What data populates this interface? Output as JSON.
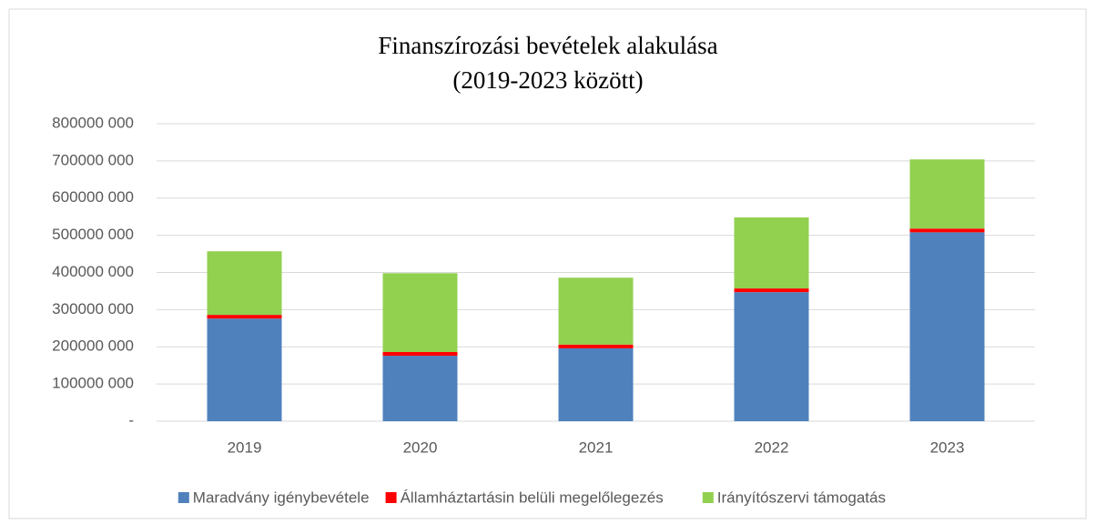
{
  "chart_data": {
    "type": "stacked_bar",
    "title": "Finanszírozási bevételek alakulása",
    "subtitle": "(2019-2023 között)",
    "categories": [
      "2019",
      "2020",
      "2021",
      "2022",
      "2023"
    ],
    "series": [
      {
        "name": "Maradvány igénybevétele",
        "color": "#4f81bd",
        "values": [
          276000000,
          176000000,
          196000000,
          347000000,
          508000000
        ]
      },
      {
        "name": "Államháztartásin belüli megelőlegezés",
        "color": "#ff0000",
        "values": [
          10000000,
          10000000,
          10000000,
          10000000,
          10000000
        ]
      },
      {
        "name": "Irányítószervi támogatás",
        "color": "#92d050",
        "values": [
          171000000,
          212000000,
          180000000,
          191000000,
          186000000
        ]
      }
    ],
    "ylim": [
      0,
      800000000
    ],
    "yticks": [
      {
        "value": 0,
        "label": "-"
      },
      {
        "value": 100000000,
        "label": "100000 000"
      },
      {
        "value": 200000000,
        "label": "200000 000"
      },
      {
        "value": 300000000,
        "label": "300000 000"
      },
      {
        "value": 400000000,
        "label": "400000 000"
      },
      {
        "value": 500000000,
        "label": "500000 000"
      },
      {
        "value": 600000000,
        "label": "600000 000"
      },
      {
        "value": 700000000,
        "label": "700000 000"
      },
      {
        "value": 800000000,
        "label": "800000 000"
      }
    ],
    "grid": true,
    "legend": "bottom"
  }
}
